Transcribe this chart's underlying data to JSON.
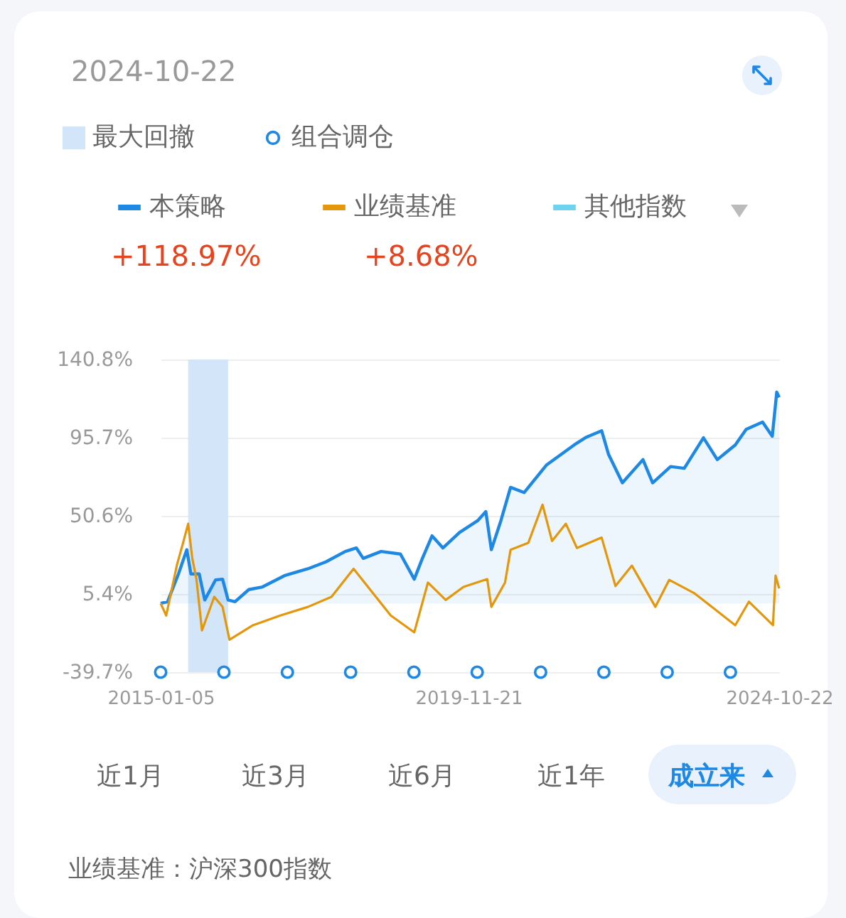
{
  "chart_data": {
    "type": "line",
    "title": "2024-10-22",
    "xlim": [
      "2015-01-05",
      "2024-10-22"
    ],
    "xticks": [
      "2015-01-05",
      "2019-11-21",
      "2024-10-22"
    ],
    "ylim": [
      -39.7,
      140.8
    ],
    "yticks": [
      {
        "value": -39.7,
        "label": "-39.7%"
      },
      {
        "value": 5.4,
        "label": "5.4%"
      },
      {
        "value": 50.6,
        "label": "50.6%"
      },
      {
        "value": 95.7,
        "label": "95.7%"
      },
      {
        "value": 140.8,
        "label": "140.8%"
      }
    ],
    "grid": "y",
    "legend": "top",
    "bands": [
      {
        "axis": "x",
        "from": "2015-06-13",
        "to": "2016-01-30",
        "label": "最大回撤",
        "color": "#d3e5f8"
      }
    ],
    "series": [
      {
        "name": "本策略",
        "type": "area",
        "color": "#1e88e5",
        "x": [
          "2015-01-05",
          "2015-02-14",
          "2015-04-18",
          "2015-06-05",
          "2015-06-29",
          "2015-08-16",
          "2015-09-17",
          "2015-11-19",
          "2015-12-29",
          "2016-01-30",
          "2016-03-10",
          "2016-05-29",
          "2016-08-16",
          "2016-12-21",
          "2017-05-06",
          "2017-08-18",
          "2017-12-08",
          "2018-02-10",
          "2018-03-22",
          "2018-07-03",
          "2018-10-23",
          "2019-01-11",
          "2019-02-27",
          "2019-04-24",
          "2019-06-26",
          "2019-09-30",
          "2020-01-12",
          "2020-02-29",
          "2020-04-01",
          "2020-05-26",
          "2020-07-21",
          "2020-10-08",
          "2021-02-15",
          "2021-07-24",
          "2021-10-03",
          "2021-12-30",
          "2022-02-08",
          "2022-04-29",
          "2022-08-26",
          "2022-10-21",
          "2023-02-02",
          "2023-04-22",
          "2023-08-11",
          "2023-10-30",
          "2024-02-11",
          "2024-04-14",
          "2024-07-18",
          "2024-09-12",
          "2024-10-08",
          "2024-10-22"
        ],
        "values": [
          0,
          1,
          17,
          31,
          17,
          17,
          2,
          13.6,
          14,
          2,
          1,
          8,
          9.5,
          16,
          20,
          24,
          30,
          32,
          26,
          30,
          28.5,
          14,
          26,
          39,
          32,
          41,
          47.7,
          53,
          31,
          47.7,
          67,
          64,
          80,
          91.5,
          96,
          99.7,
          86,
          69.6,
          83,
          69.6,
          79,
          78,
          95.6,
          83,
          91.5,
          100.5,
          104.7,
          96.5,
          122,
          118.97
        ]
      },
      {
        "name": "业绩基准",
        "color": "#e5970c",
        "x": [
          "2015-01-05",
          "2015-02-06",
          "2015-04-10",
          "2015-05-12",
          "2015-06-13",
          "2015-07-07",
          "2015-07-31",
          "2015-09-01",
          "2015-11-11",
          "2015-12-29",
          "2016-02-07",
          "2016-06-22",
          "2016-11-27",
          "2017-05-06",
          "2017-09-19",
          "2018-01-25",
          "2018-05-16",
          "2018-08-28",
          "2019-01-11",
          "2019-03-31",
          "2019-07-12",
          "2019-10-23",
          "2020-03-08",
          "2020-04-01",
          "2020-06-19",
          "2020-07-21",
          "2020-11-01",
          "2021-01-22",
          "2021-03-18",
          "2021-06-06",
          "2021-08-09",
          "2021-12-30",
          "2022-03-20",
          "2022-06-23",
          "2022-11-06",
          "2023-01-25",
          "2023-06-17",
          "2023-09-28",
          "2024-02-11",
          "2024-04-30",
          "2024-09-16",
          "2024-10-01",
          "2024-10-22"
        ],
        "values": [
          0,
          -7,
          22.6,
          34,
          46,
          26,
          14,
          -15.6,
          3.8,
          -2,
          -21,
          -12.6,
          -7,
          -2,
          3.8,
          20,
          6,
          -7,
          -16.7,
          12,
          2,
          9.5,
          14,
          -2,
          12,
          31,
          35,
          57,
          36,
          46,
          32,
          38,
          10,
          21.8,
          -2,
          13.6,
          6,
          -2,
          -12.6,
          1,
          -12.6,
          16,
          8.68
        ]
      },
      {
        "name": "其他指数",
        "color": "#6dd3ee"
      },
      {
        "name": "组合调仓",
        "type": "scatter",
        "marker": "circle",
        "color": "#1e88e5",
        "x": [
          "2015-01-05",
          "2016-01-06",
          "2017-01-07",
          "2018-01-08",
          "2019-01-09",
          "2020-01-10",
          "2021-01-11",
          "2022-01-12",
          "2023-01-13",
          "2024-01-14"
        ],
        "values": [
          -39.7,
          -39.7,
          -39.7,
          -39.7,
          -39.7,
          -39.7,
          -39.7,
          -39.7,
          -39.7,
          -39.7
        ]
      }
    ],
    "annotations": [
      "+118.97%",
      "+8.68%",
      "近1月",
      "近3月",
      "近6月",
      "近1年",
      "成立来",
      "业绩基准：沪深300指数"
    ]
  }
}
